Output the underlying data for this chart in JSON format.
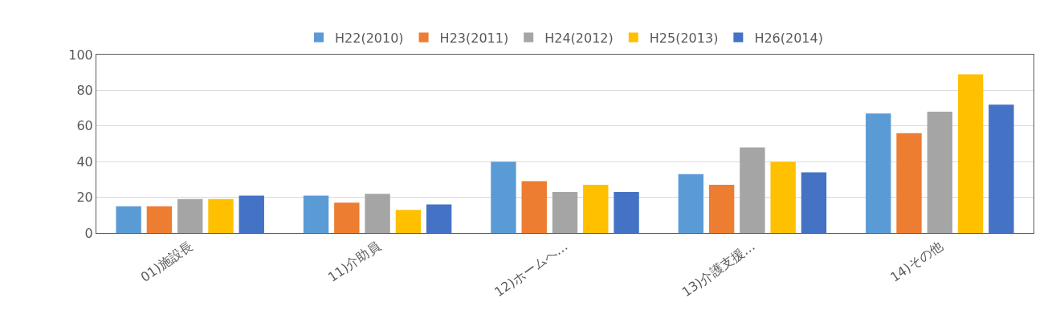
{
  "chart_data": {
    "type": "bar",
    "categories": [
      "01)施設長",
      "11)介助員",
      "12)ホームへ…",
      "13)介護支援…",
      "14)その他"
    ],
    "series": [
      {
        "name": "H22(2010)",
        "color": "#5b9bd5",
        "values": [
          15,
          21,
          40,
          33,
          67
        ]
      },
      {
        "name": "H23(2011)",
        "color": "#ed7d31",
        "values": [
          15,
          17,
          29,
          27,
          56
        ]
      },
      {
        "name": "H24(2012)",
        "color": "#a5a5a5",
        "values": [
          19,
          22,
          23,
          48,
          68
        ]
      },
      {
        "name": "H25(2013)",
        "color": "#ffc000",
        "values": [
          19,
          13,
          27,
          40,
          89
        ]
      },
      {
        "name": "H26(2014)",
        "color": "#4472c4",
        "values": [
          21,
          16,
          23,
          34,
          72
        ]
      }
    ],
    "ylim": [
      0,
      100
    ],
    "yticks": [
      0,
      20,
      40,
      60,
      80,
      100
    ],
    "grid": "y",
    "legend": "top"
  }
}
